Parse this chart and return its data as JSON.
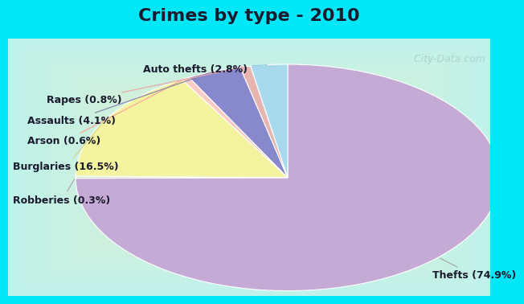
{
  "title": "Crimes by type - 2010",
  "slices": [
    {
      "label": "Thefts",
      "pct": 74.9,
      "color": "#c4aad4"
    },
    {
      "label": "Robberies",
      "pct": 0.3,
      "color": "#d4e8cc"
    },
    {
      "label": "Burglaries",
      "pct": 16.5,
      "color": "#f4f4a0"
    },
    {
      "label": "Arson",
      "pct": 0.6,
      "color": "#f8ccc4"
    },
    {
      "label": "Assaults",
      "pct": 4.1,
      "color": "#8888cc"
    },
    {
      "label": "Rapes",
      "pct": 0.8,
      "color": "#e8b4b0"
    },
    {
      "label": "Auto thefts",
      "pct": 2.8,
      "color": "#a8d8ec"
    }
  ],
  "bg_cyan": "#00e8f8",
  "bg_main": "#d4edd4",
  "title_fontsize": 16,
  "label_fontsize": 9,
  "watermark": " City-Data.com",
  "title_color": "#1a1a2e",
  "label_color": "#1a1a2e"
}
